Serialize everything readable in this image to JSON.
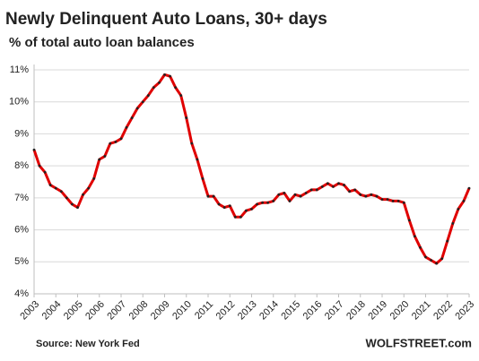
{
  "chart_data": {
    "type": "line",
    "title": "Newly Delinquent Auto Loans, 30+ days",
    "subtitle": "% of total auto loan balances",
    "source": "Source: New York Fed",
    "credit": "WOLFSTREET.com",
    "x": [
      2003,
      2003.25,
      2003.5,
      2003.75,
      2004,
      2004.25,
      2004.5,
      2004.75,
      2005,
      2005.25,
      2005.5,
      2005.75,
      2006,
      2006.25,
      2006.5,
      2006.75,
      2007,
      2007.25,
      2007.5,
      2007.75,
      2008,
      2008.25,
      2008.5,
      2008.75,
      2009,
      2009.25,
      2009.5,
      2009.75,
      2010,
      2010.25,
      2010.5,
      2010.75,
      2011,
      2011.25,
      2011.5,
      2011.75,
      2012,
      2012.25,
      2012.5,
      2012.75,
      2013,
      2013.25,
      2013.5,
      2013.75,
      2014,
      2014.25,
      2014.5,
      2014.75,
      2015,
      2015.25,
      2015.5,
      2015.75,
      2016,
      2016.25,
      2016.5,
      2016.75,
      2017,
      2017.25,
      2017.5,
      2017.75,
      2018,
      2018.25,
      2018.5,
      2018.75,
      2019,
      2019.25,
      2019.5,
      2019.75,
      2020,
      2020.25,
      2020.5,
      2020.75,
      2021,
      2021.25,
      2021.5,
      2021.75,
      2022,
      2022.25,
      2022.5,
      2022.75,
      2023
    ],
    "series": [
      {
        "color": "#e00000",
        "marker_color": "#222222",
        "values": [
          8.5,
          8.0,
          7.8,
          7.4,
          7.3,
          7.2,
          7.0,
          6.8,
          6.7,
          7.1,
          7.3,
          7.6,
          8.2,
          8.3,
          8.7,
          8.75,
          8.85,
          9.2,
          9.5,
          9.8,
          10.0,
          10.2,
          10.45,
          10.6,
          10.85,
          10.8,
          10.45,
          10.2,
          9.5,
          8.7,
          8.2,
          7.6,
          7.05,
          7.05,
          6.8,
          6.7,
          6.75,
          6.4,
          6.4,
          6.6,
          6.65,
          6.8,
          6.85,
          6.85,
          6.9,
          7.1,
          7.15,
          6.9,
          7.1,
          7.05,
          7.15,
          7.25,
          7.25,
          7.35,
          7.45,
          7.35,
          7.45,
          7.4,
          7.2,
          7.25,
          7.1,
          7.05,
          7.1,
          7.05,
          6.95,
          6.95,
          6.9,
          6.9,
          6.85,
          6.3,
          5.8,
          5.45,
          5.15,
          5.05,
          4.95,
          5.1,
          5.65,
          6.2,
          6.65,
          6.9,
          7.3
        ]
      }
    ],
    "xlim": [
      2003,
      2023
    ],
    "xticks": [
      2003,
      2004,
      2005,
      2006,
      2007,
      2008,
      2009,
      2010,
      2011,
      2012,
      2013,
      2014,
      2015,
      2016,
      2017,
      2018,
      2019,
      2020,
      2021,
      2022,
      2023
    ],
    "ylim": [
      4,
      11
    ],
    "yticks": [
      {
        "value": 4,
        "label": "4%"
      },
      {
        "value": 5,
        "label": "5%"
      },
      {
        "value": 6,
        "label": "6%"
      },
      {
        "value": 7,
        "label": "7%"
      },
      {
        "value": 8,
        "label": "8%"
      },
      {
        "value": 9,
        "label": "9%"
      },
      {
        "value": 10,
        "label": "10%"
      },
      {
        "value": 11,
        "label": "11%"
      }
    ],
    "grid": true
  }
}
